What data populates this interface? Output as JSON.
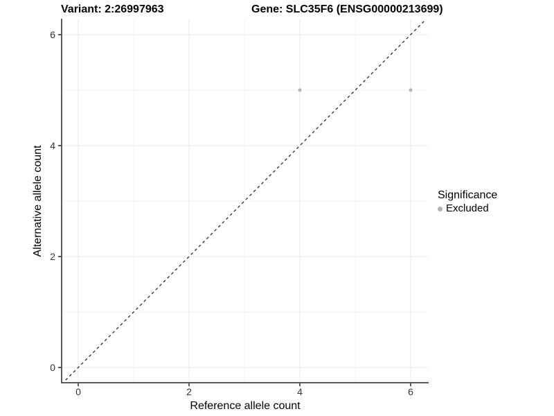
{
  "chart_data": {
    "type": "scatter",
    "title_left": "Variant: 2:26997963",
    "title_right": "Gene: SLC35F6 (ENSG00000213699)",
    "xlabel": "Reference allele count",
    "ylabel": "Alternative allele count",
    "xlim": [
      -0.3,
      6.3
    ],
    "ylim": [
      -0.3,
      6.3
    ],
    "x_ticks": [
      0,
      2,
      4,
      6
    ],
    "y_ticks": [
      0,
      2,
      4,
      6
    ],
    "x_minor_gridlines": [
      1,
      3,
      5
    ],
    "y_minor_gridlines": [
      1,
      3,
      5
    ],
    "grid": "major and minor gridlines on white panel",
    "series": [
      {
        "name": "Excluded",
        "color": "#b4b4b4",
        "points": [
          [
            4,
            5
          ],
          [
            6,
            5
          ]
        ]
      }
    ],
    "reference_line": {
      "type": "identity y=x",
      "style": "dashed",
      "color": "#1a1a1a",
      "from": [
        -0.3,
        -0.3
      ],
      "to": [
        6.3,
        6.3
      ]
    },
    "legend": {
      "title": "Significance",
      "position": "right",
      "items": [
        {
          "label": "Excluded",
          "color": "#b4b4b4"
        }
      ]
    }
  },
  "colors": {
    "background": "#ffffff",
    "axis_line": "#595959",
    "tick_text": "#333333",
    "grid_major": "#e8e8e8",
    "grid_minor": "#f3f3f3",
    "point": "#b4b4b4",
    "dashed_line": "#1a1a1a"
  }
}
